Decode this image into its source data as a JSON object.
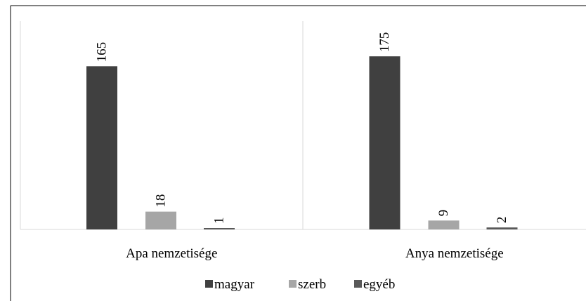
{
  "chart_data": {
    "type": "bar",
    "categories": [
      "Apa nemzetisége",
      "Anya nemzetisége"
    ],
    "series": [
      {
        "name": "magyar",
        "values": [
          165,
          175
        ],
        "color": "#404040"
      },
      {
        "name": "szerb",
        "values": [
          18,
          9
        ],
        "color": "#a6a6a6"
      },
      {
        "name": "egyéb",
        "values": [
          1,
          2
        ],
        "color": "#595959"
      }
    ],
    "title": "",
    "xlabel": "",
    "ylabel": "",
    "ylim": [
      0,
      200
    ],
    "grid": false,
    "legend_position": "bottom",
    "data_labels": true,
    "data_label_rotation": "vertical"
  }
}
